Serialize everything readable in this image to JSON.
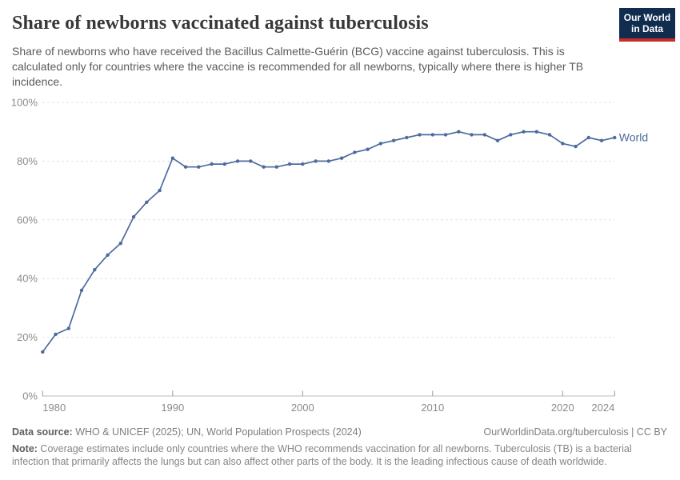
{
  "header": {
    "title": "Share of newborns vaccinated against tuberculosis",
    "subtitle": "Share of newborns who have received the Bacillus Calmette-Guérin (BCG) vaccine against tuberculosis. This is calculated only for countries where the vaccine is recommended for all newborns, typically where there is higher TB incidence.",
    "logo": {
      "line1": "Our World",
      "line2": "in Data"
    }
  },
  "chart_data": {
    "type": "line",
    "title": "Share of newborns vaccinated against tuberculosis",
    "x": [
      1980,
      1981,
      1982,
      1983,
      1984,
      1985,
      1986,
      1987,
      1988,
      1989,
      1990,
      1991,
      1992,
      1993,
      1994,
      1995,
      1996,
      1997,
      1998,
      1999,
      2000,
      2001,
      2002,
      2003,
      2004,
      2005,
      2006,
      2007,
      2008,
      2009,
      2010,
      2011,
      2012,
      2013,
      2014,
      2015,
      2016,
      2017,
      2018,
      2019,
      2020,
      2021,
      2022,
      2023,
      2024
    ],
    "series": [
      {
        "name": "World",
        "color": "#4C6A9C",
        "values": [
          15,
          21,
          23,
          36,
          43,
          48,
          52,
          61,
          66,
          70,
          81,
          78,
          78,
          79,
          79,
          80,
          80,
          78,
          78,
          79,
          79,
          80,
          80,
          81,
          83,
          84,
          86,
          87,
          88,
          89,
          89,
          89,
          90,
          89,
          89,
          87,
          89,
          90,
          90,
          89,
          86,
          85,
          88,
          87,
          88
        ]
      }
    ],
    "xlim": [
      1980,
      2024
    ],
    "ylim": [
      0,
      100
    ],
    "xticks": [
      1980,
      1990,
      2000,
      2010,
      2020,
      2024
    ],
    "yticks": [
      0,
      20,
      40,
      60,
      80,
      100
    ],
    "yticklabels": [
      "0%",
      "20%",
      "40%",
      "60%",
      "80%",
      "100%"
    ],
    "grid": "horizontal-dashed",
    "legend": "line-end-label"
  },
  "footer": {
    "data_source_label": "Data source:",
    "data_source_text": " WHO & UNICEF (2025); UN, World Population Prospects (2024)",
    "link_text": "OurWorldinData.org/tuberculosis | CC BY",
    "note_label": "Note:",
    "note_text": " Coverage estimates include only countries where the WHO recommends vaccination for all newborns. Tuberculosis (TB) is a bacterial infection that primarily affects the lungs but can also affect other parts of the body. It is the leading infectious cause of death worldwide."
  },
  "colors": {
    "line": "#4C6A9C",
    "title": "#383838",
    "subtitle": "#5b5b5b",
    "axis_label": "#8b8b8b",
    "grid": "#dddddd",
    "axis_line": "#bbbbbb",
    "tick": "#9a9a9a",
    "footer_text": "#7d7d7d",
    "logo_background": "#102d50",
    "logo_stripe": "#c82d26"
  }
}
